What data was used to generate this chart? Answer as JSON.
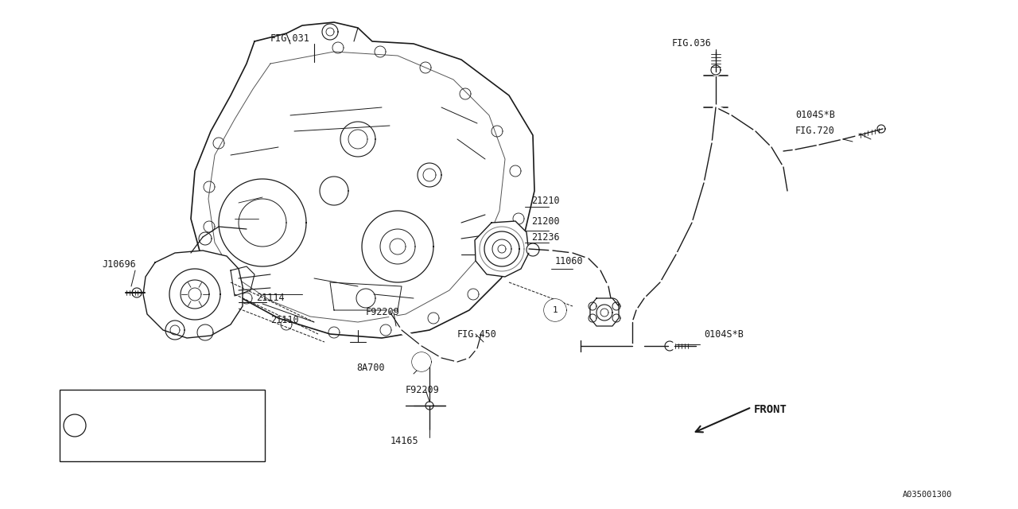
{
  "bg_color": "#ffffff",
  "line_color": "#1a1a1a",
  "lw": 0.9,
  "fig_width": 12.8,
  "fig_height": 6.4,
  "dpi": 100,
  "diagram_code": "A035001300",
  "xlim": [
    0,
    1280
  ],
  "ylim": [
    0,
    640
  ]
}
